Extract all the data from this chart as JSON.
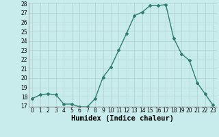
{
  "x": [
    0,
    1,
    2,
    3,
    4,
    5,
    6,
    7,
    8,
    9,
    10,
    11,
    12,
    13,
    14,
    15,
    16,
    17,
    18,
    19,
    20,
    21,
    22,
    23
  ],
  "y": [
    17.8,
    18.2,
    18.3,
    18.2,
    17.2,
    17.2,
    16.9,
    16.9,
    17.8,
    20.1,
    21.2,
    23.0,
    24.8,
    26.7,
    27.1,
    27.8,
    27.8,
    27.9,
    24.3,
    22.6,
    21.9,
    19.5,
    18.3,
    17.1
  ],
  "line_color": "#2e7d6e",
  "marker": "D",
  "marker_size": 2.0,
  "bg_color": "#c8ecec",
  "grid_color": "#b0d0d0",
  "xlabel": "Humidex (Indice chaleur)",
  "ylim": [
    17,
    28
  ],
  "xlim": [
    -0.5,
    23.5
  ],
  "yticks": [
    17,
    18,
    19,
    20,
    21,
    22,
    23,
    24,
    25,
    26,
    27,
    28
  ],
  "xticks": [
    0,
    1,
    2,
    3,
    4,
    5,
    6,
    7,
    8,
    9,
    10,
    11,
    12,
    13,
    14,
    15,
    16,
    17,
    18,
    19,
    20,
    21,
    22,
    23
  ],
  "tick_fontsize": 5.5,
  "xlabel_fontsize": 7.5,
  "line_width": 1.0
}
